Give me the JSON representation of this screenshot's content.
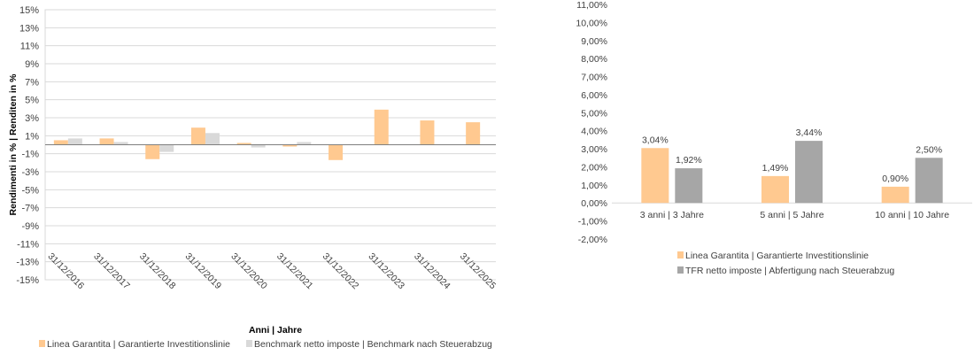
{
  "colors": {
    "orange": "#FFC990",
    "gray": "#BFBFBF",
    "axis": "#7F7F7F",
    "grid": "#D9D9D9",
    "text": "#404040"
  },
  "chart_data": [
    {
      "type": "bar",
      "title": "",
      "xlabel": "Anni | Jahre",
      "ylabel": "Rendimenti in % | Renditen in %",
      "ylim": [
        -15,
        15
      ],
      "yticks": [
        "15%",
        "13%",
        "11%",
        "9%",
        "7%",
        "5%",
        "3%",
        "1%",
        "-1%",
        "-3%",
        "-5%",
        "-7%",
        "-9%",
        "-11%",
        "-13%",
        "-15%"
      ],
      "ytick_values": [
        15,
        13,
        11,
        9,
        7,
        5,
        3,
        1,
        -1,
        -3,
        -5,
        -7,
        -9,
        -11,
        -13,
        -15
      ],
      "grid": true,
      "legend_position": "bottom",
      "categories": [
        "31/12/2016",
        "31/12/2017",
        "31/12/2018",
        "31/12/2019",
        "31/12/2020",
        "31/12/2021",
        "31/12/2022",
        "31/12/2023",
        "31/12/2024",
        "31/12/2025"
      ],
      "series": [
        {
          "name": "Linea Garantita | Garantierte Investitionslinie",
          "color": "#FFC990",
          "values": [
            0.5,
            0.7,
            -1.6,
            1.9,
            0.2,
            -0.2,
            -1.7,
            3.9,
            2.7,
            2.5
          ]
        },
        {
          "name": "Benchmark netto imposte | Benchmark nach Steuerabzug",
          "color": "#D9D9D9",
          "values": [
            0.7,
            0.3,
            -0.8,
            1.3,
            -0.3,
            0.3,
            null,
            null,
            null,
            null
          ]
        }
      ]
    },
    {
      "type": "bar",
      "title": "",
      "xlabel": "",
      "ylabel": "",
      "ylim": [
        -2,
        11
      ],
      "yticks": [
        "11,00%",
        "10,00%",
        "9,00%",
        "8,00%",
        "7,00%",
        "6,00%",
        "5,00%",
        "4,00%",
        "3,00%",
        "2,00%",
        "1,00%",
        "0,00%",
        "-1,00%",
        "-2,00%"
      ],
      "ytick_values": [
        11,
        10,
        9,
        8,
        7,
        6,
        5,
        4,
        3,
        2,
        1,
        0,
        -1,
        -2
      ],
      "grid": false,
      "legend_position": "bottom",
      "categories": [
        "3 anni | 3 Jahre",
        "5 anni | 5 Jahre",
        "10 anni | 10 Jahre"
      ],
      "series": [
        {
          "name": "Linea Garantita | Garantierte Investitionslinie",
          "color": "#FFC990",
          "values": [
            3.04,
            1.49,
            0.9
          ],
          "labels": [
            "3,04%",
            "1,49%",
            "0,90%"
          ]
        },
        {
          "name": "TFR netto imposte | Abfertigung nach Steuerabzug",
          "color": "#A6A6A6",
          "values": [
            1.92,
            3.44,
            2.5
          ],
          "labels": [
            "1,92%",
            "3,44%",
            "2,50%"
          ]
        }
      ]
    }
  ]
}
